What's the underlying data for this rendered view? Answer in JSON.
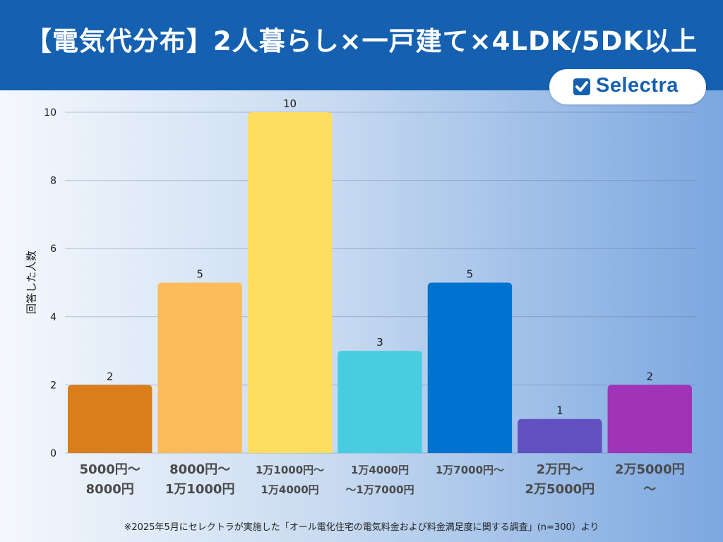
{
  "header": {
    "title": "【電気代分布】2人暮らし×一戸建て×4LDK/5DK以上",
    "logo_text": "Selectra",
    "background_color": "#1560b0"
  },
  "chart_data": {
    "type": "bar",
    "title": "【電気代分布】2人暮らし×一戸建て×4LDK/5DK以上",
    "xlabel": "",
    "ylabel": "回答した人数",
    "ylim": [
      0,
      10
    ],
    "yticks": [
      0,
      2,
      4,
      6,
      8,
      10
    ],
    "grid": true,
    "categories": [
      [
        "5000円〜",
        "8000円"
      ],
      [
        "8000円〜",
        "1万1000円"
      ],
      [
        "1万1000円〜",
        "1万4000円"
      ],
      [
        "1万4000円",
        "〜1万7000円"
      ],
      [
        "1万7000円〜"
      ],
      [
        "2万円〜",
        "2万5000円"
      ],
      [
        "2万5000円",
        "〜"
      ]
    ],
    "values": [
      2,
      5,
      10,
      3,
      5,
      1,
      2
    ],
    "colors": [
      "#d97e1a",
      "#fdbb5a",
      "#ffdd5e",
      "#48cde0",
      "#0073d1",
      "#6250c0",
      "#a033b7"
    ],
    "data_labels": [
      "2",
      "5",
      "10",
      "3",
      "5",
      "1",
      "2"
    ]
  },
  "footnote": "※2025年5月にセレクトラが実施した「オール電化住宅の電気料金および料金満足度に関する調査」(n=300）より"
}
